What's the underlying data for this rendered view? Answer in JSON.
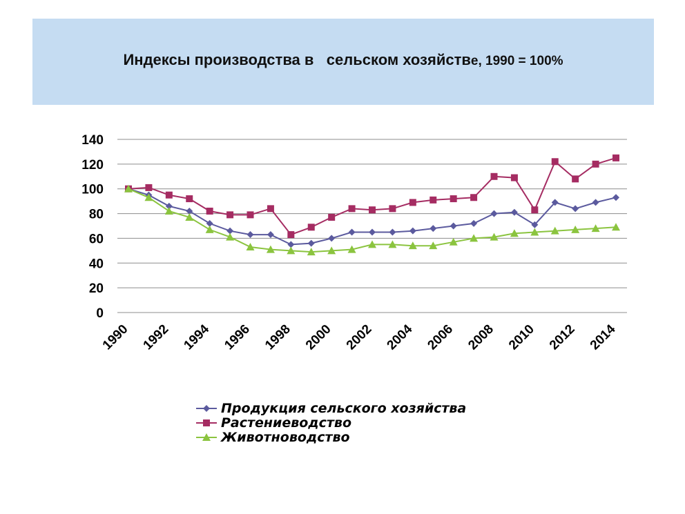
{
  "header": {
    "title_main": "Индексы производства в   сельском хозяйств",
    "title_sub": "е, 1990 = 100%"
  },
  "chart_data": {
    "type": "line",
    "title": "Индексы производства в   сельском хозяйстве, 1990 = 100%",
    "xlabel": "",
    "ylabel": "",
    "x": [
      1990,
      1991,
      1992,
      1993,
      1994,
      1995,
      1996,
      1997,
      1998,
      1999,
      2000,
      2001,
      2002,
      2003,
      2004,
      2005,
      2006,
      2007,
      2008,
      2009,
      2010,
      2011,
      2012,
      2013,
      2014
    ],
    "x_tick_labels": [
      "1990",
      "1992",
      "1994",
      "1996",
      "1998",
      "2000",
      "2002",
      "2004",
      "2006",
      "2008",
      "2010",
      "2012",
      "2014"
    ],
    "y_tick_labels": [
      "0",
      "20",
      "40",
      "60",
      "80",
      "100",
      "120",
      "140"
    ],
    "ylim": [
      0,
      140
    ],
    "grid": true,
    "legend_position": "bottom",
    "series": [
      {
        "name": "Продукция сельского хозяйства",
        "color": "#5b5a9e",
        "marker": "diamond",
        "values": [
          100,
          95,
          86,
          82,
          72,
          66,
          63,
          63,
          55,
          56,
          60,
          65,
          65,
          65,
          66,
          68,
          70,
          72,
          80,
          81,
          71,
          89,
          84,
          89,
          93
        ]
      },
      {
        "name": "Растениеводство",
        "color": "#a52c62",
        "marker": "square",
        "values": [
          100,
          101,
          95,
          92,
          82,
          79,
          79,
          84,
          63,
          69,
          77,
          84,
          83,
          84,
          89,
          91,
          92,
          93,
          110,
          109,
          83,
          122,
          108,
          120,
          125
        ]
      },
      {
        "name": "Животноводство",
        "color": "#8bc43f",
        "marker": "triangle",
        "values": [
          100,
          93,
          82,
          77,
          67,
          61,
          53,
          51,
          50,
          49,
          50,
          51,
          55,
          55,
          54,
          54,
          57,
          60,
          61,
          64,
          65,
          66,
          67,
          68,
          69
        ]
      }
    ]
  }
}
